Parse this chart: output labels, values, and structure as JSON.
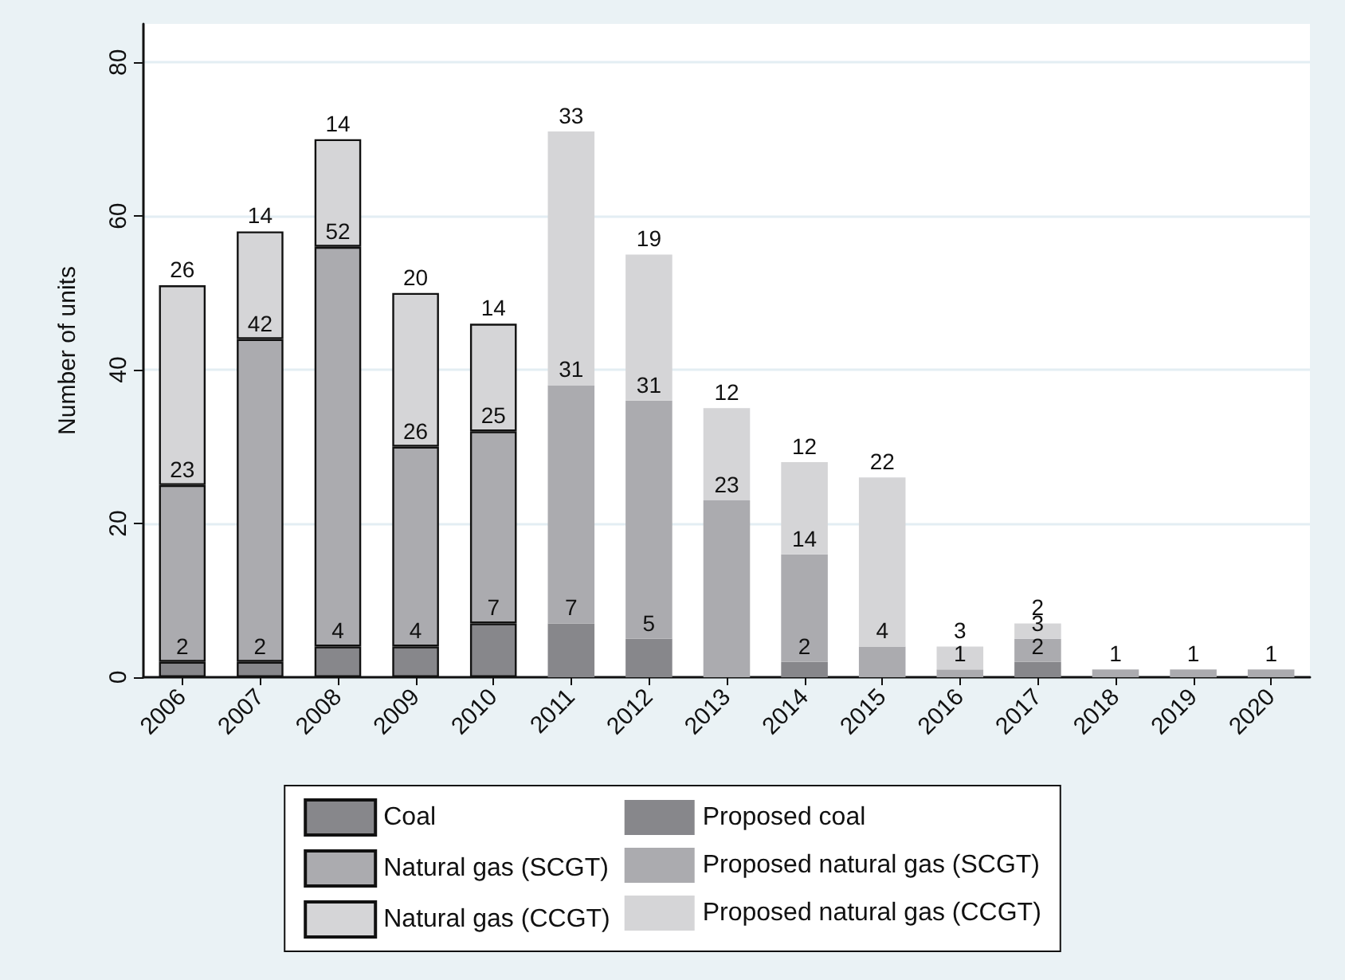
{
  "chart_data": {
    "type": "bar",
    "ylabel": "Number of units",
    "stacked": true,
    "data_labels": true,
    "grid": "y",
    "legend": "bottom",
    "categories": [
      "2006",
      "2007",
      "2008",
      "2009",
      "2010",
      "2011",
      "2012",
      "2013",
      "2014",
      "2015",
      "2016",
      "2017",
      "2018",
      "2019",
      "2020"
    ],
    "ylim": [
      0,
      85
    ],
    "yticks": [
      0,
      20,
      40,
      60,
      80
    ],
    "series": [
      {
        "name": "Coal",
        "color": "#87878b",
        "values": [
          2,
          2,
          4,
          4,
          7,
          null,
          null,
          null,
          null,
          null,
          null,
          null,
          null,
          null,
          null
        ]
      },
      {
        "name": "Natural gas (SCGT)",
        "color": "#ababaf",
        "values": [
          23,
          42,
          52,
          26,
          25,
          null,
          null,
          null,
          null,
          null,
          null,
          null,
          null,
          null,
          null
        ]
      },
      {
        "name": "Natural gas (CCGT)",
        "color": "#d5d5d7",
        "values": [
          26,
          14,
          14,
          20,
          14,
          null,
          null,
          null,
          null,
          null,
          null,
          null,
          null,
          null,
          null
        ]
      },
      {
        "name": "Proposed coal",
        "color": "#87878b",
        "values": [
          null,
          null,
          null,
          null,
          null,
          7,
          5,
          null,
          2,
          null,
          null,
          2,
          null,
          null,
          null
        ]
      },
      {
        "name": "Proposed natural gas (SCGT)",
        "color": "#ababaf",
        "values": [
          null,
          null,
          null,
          null,
          null,
          31,
          31,
          23,
          14,
          4,
          1,
          3,
          1,
          1,
          1
        ]
      },
      {
        "name": "Proposed natural gas (CCGT)",
        "color": "#d5d5d7",
        "values": [
          null,
          null,
          null,
          null,
          null,
          33,
          19,
          12,
          12,
          22,
          3,
          2,
          null,
          null,
          null
        ]
      }
    ]
  }
}
